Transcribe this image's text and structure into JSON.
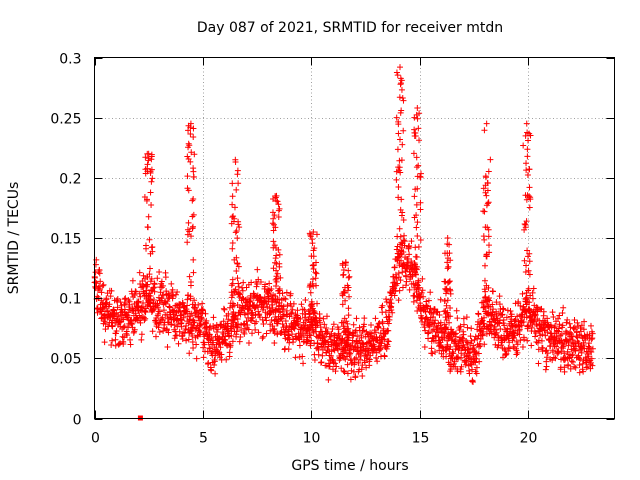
{
  "chart_data": {
    "type": "scatter",
    "title": "Day 087 of 2021, SRMTID for receiver mtdn",
    "xlabel": "GPS time / hours",
    "ylabel": "SRMTID / TECUs",
    "xlim": [
      0,
      24
    ],
    "ylim": [
      0,
      0.3
    ],
    "xticks": [
      0,
      5,
      10,
      15,
      20
    ],
    "xtick_labels": [
      "0",
      "5",
      "10",
      "15",
      "20"
    ],
    "yticks": [
      0,
      0.05,
      0.1,
      0.15,
      0.2,
      0.25,
      0.3
    ],
    "ytick_labels": [
      "0",
      "0.05",
      "0.1",
      "0.15",
      "0.2",
      "0.25",
      "0.3"
    ],
    "grid": true,
    "marker": "plus",
    "color": "#ff0000",
    "x_range": [
      0,
      23.0
    ],
    "baseline": [
      [
        0.0,
        0.115
      ],
      [
        0.5,
        0.09
      ],
      [
        1.0,
        0.08
      ],
      [
        1.5,
        0.085
      ],
      [
        2.0,
        0.09
      ],
      [
        2.5,
        0.1
      ],
      [
        3.0,
        0.095
      ],
      [
        3.5,
        0.09
      ],
      [
        4.0,
        0.085
      ],
      [
        4.5,
        0.08
      ],
      [
        5.0,
        0.075
      ],
      [
        5.5,
        0.058
      ],
      [
        6.0,
        0.07
      ],
      [
        6.5,
        0.085
      ],
      [
        7.0,
        0.09
      ],
      [
        7.5,
        0.095
      ],
      [
        8.0,
        0.095
      ],
      [
        8.5,
        0.09
      ],
      [
        9.0,
        0.08
      ],
      [
        9.5,
        0.075
      ],
      [
        10.0,
        0.075
      ],
      [
        10.5,
        0.062
      ],
      [
        11.0,
        0.06
      ],
      [
        11.5,
        0.058
      ],
      [
        12.0,
        0.058
      ],
      [
        12.5,
        0.06
      ],
      [
        13.0,
        0.062
      ],
      [
        13.5,
        0.075
      ],
      [
        14.0,
        0.13
      ],
      [
        14.5,
        0.13
      ],
      [
        15.0,
        0.1
      ],
      [
        15.5,
        0.08
      ],
      [
        16.0,
        0.07
      ],
      [
        16.5,
        0.06
      ],
      [
        17.0,
        0.06
      ],
      [
        17.5,
        0.05
      ],
      [
        18.0,
        0.09
      ],
      [
        18.5,
        0.08
      ],
      [
        19.0,
        0.07
      ],
      [
        19.5,
        0.075
      ],
      [
        20.0,
        0.09
      ],
      [
        20.5,
        0.075
      ],
      [
        21.0,
        0.065
      ],
      [
        21.5,
        0.065
      ],
      [
        22.0,
        0.06
      ],
      [
        22.5,
        0.06
      ],
      [
        23.0,
        0.058
      ]
    ],
    "spikes": [
      {
        "x": 2.5,
        "peak": 0.22
      },
      {
        "x": 4.45,
        "peak": 0.245
      },
      {
        "x": 6.5,
        "peak": 0.215
      },
      {
        "x": 8.4,
        "peak": 0.185
      },
      {
        "x": 10.1,
        "peak": 0.155
      },
      {
        "x": 11.6,
        "peak": 0.13
      },
      {
        "x": 14.1,
        "peak": 0.292
      },
      {
        "x": 14.9,
        "peak": 0.258
      },
      {
        "x": 16.3,
        "peak": 0.15
      },
      {
        "x": 18.1,
        "peak": 0.245
      },
      {
        "x": 19.95,
        "peak": 0.245
      }
    ],
    "outliers": [
      {
        "x": 2.12,
        "y": 0.0
      }
    ]
  }
}
